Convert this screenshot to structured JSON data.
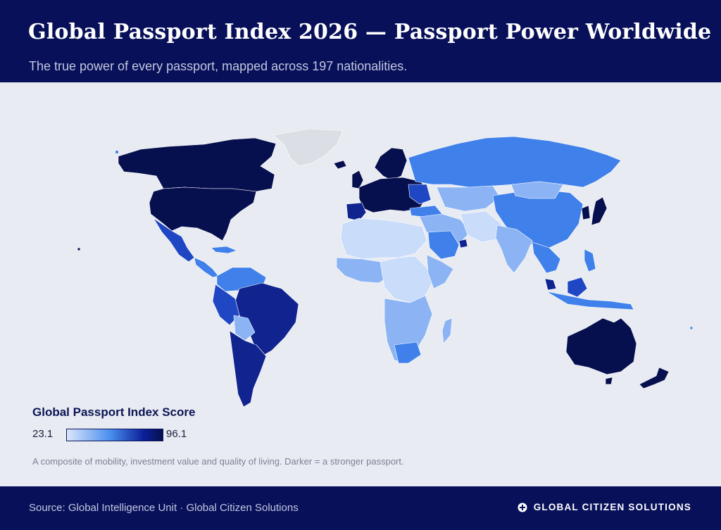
{
  "header": {
    "title": "Global Passport Index 2026 — Passport Power Worldwide",
    "subtitle": "The true power of every passport, mapped across 197 nationalities."
  },
  "legend": {
    "title": "Global Passport Index Score",
    "min": "23.1",
    "max": "96.1",
    "scale_colors": [
      "#dbe6fb",
      "#4b8fee",
      "#0b1f9a",
      "#07104f"
    ]
  },
  "note": "A composite of mobility, investment value and quality of living. Darker = a stronger passport.",
  "footer": {
    "source": "Source: Global Intelligence Unit  ·  Global Citizen Solutions",
    "brand": "GLOBAL CITIZEN SOLUTIONS",
    "brand_icon": "globe-logo-icon"
  },
  "colors": {
    "header_bg": "#08105a",
    "page_bg": "#e8ebf2",
    "no_data": "#dcdee5",
    "darkest": "#07104f",
    "dark": "#10238f",
    "medium_dark": "#1f47c4",
    "medium": "#3f80ea",
    "light": "#8cb4f4",
    "lightest": "#c9dcfa"
  },
  "regions": [
    {
      "name": "Canada",
      "level": "darkest"
    },
    {
      "name": "United States",
      "level": "darkest"
    },
    {
      "name": "Mexico",
      "level": "medium_dark"
    },
    {
      "name": "Brazil",
      "level": "dark"
    },
    {
      "name": "Argentina",
      "level": "dark"
    },
    {
      "name": "Europe",
      "level": "darkest"
    },
    {
      "name": "Russia",
      "level": "medium"
    },
    {
      "name": "China",
      "level": "medium"
    },
    {
      "name": "Japan",
      "level": "darkest"
    },
    {
      "name": "Australia",
      "level": "darkest"
    },
    {
      "name": "New Zealand",
      "level": "darkest"
    },
    {
      "name": "Africa",
      "level": "lightest"
    },
    {
      "name": "Greenland",
      "level": "no_data"
    }
  ]
}
